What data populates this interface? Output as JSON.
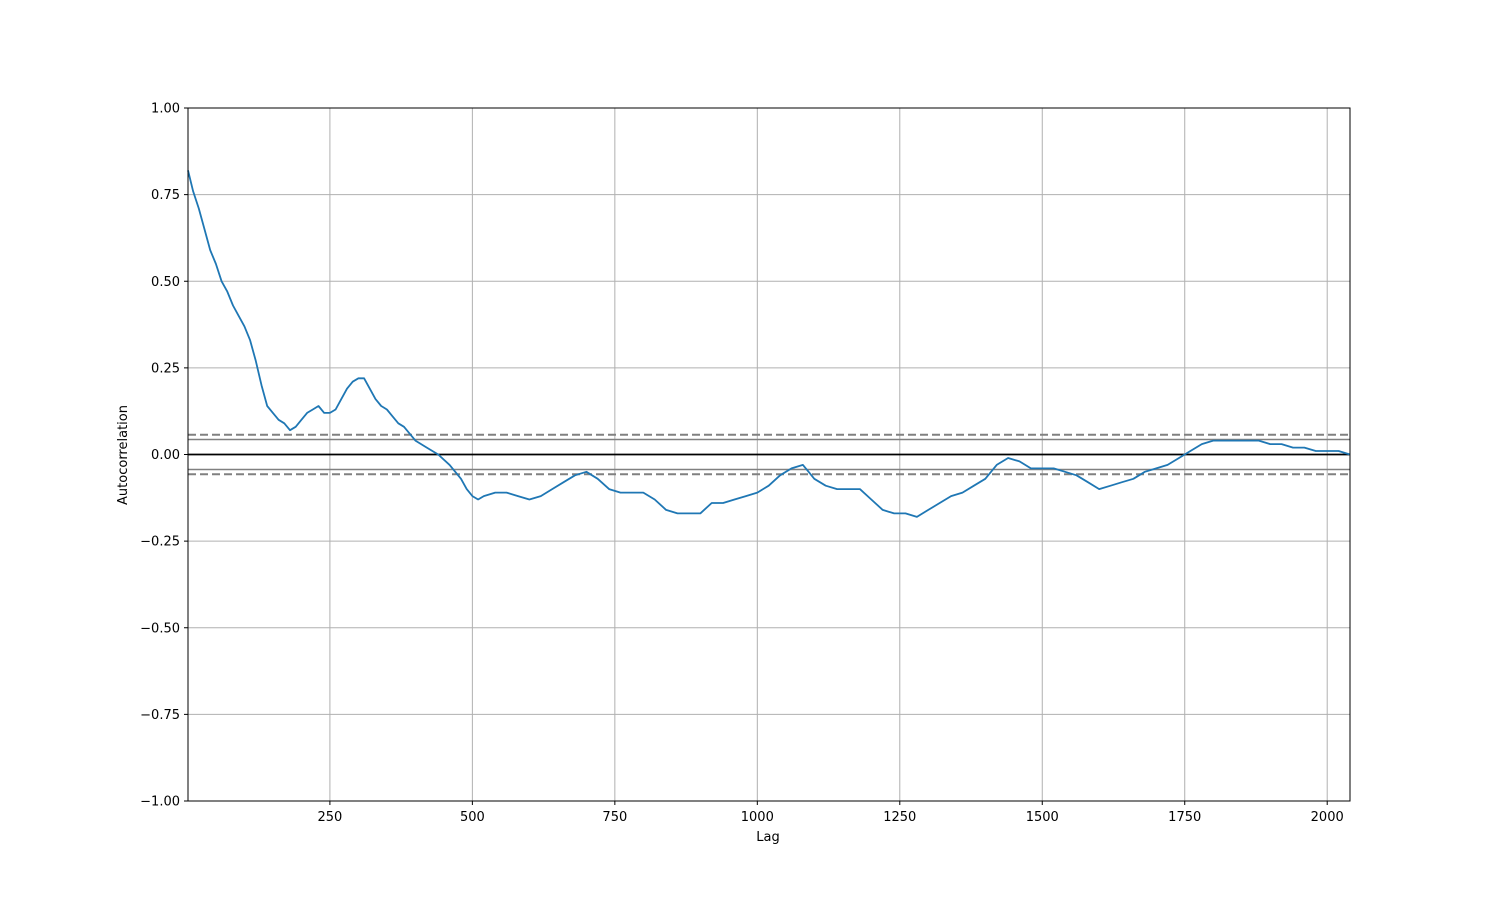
{
  "chart_data": {
    "type": "line",
    "title": "",
    "xlabel": "Lag",
    "ylabel": "Autocorrelation",
    "xlim": [
      1,
      2040
    ],
    "ylim": [
      -1.0,
      1.0
    ],
    "x_ticks": [
      250,
      500,
      750,
      1000,
      1250,
      1500,
      1750,
      2000
    ],
    "x_tick_labels": [
      "250",
      "500",
      "750",
      "1000",
      "1250",
      "1500",
      "1750",
      "2000"
    ],
    "y_ticks": [
      -1.0,
      -0.75,
      -0.5,
      -0.25,
      0.0,
      0.25,
      0.5,
      0.75,
      1.0
    ],
    "y_tick_labels": [
      "−1.00",
      "−0.75",
      "−0.50",
      "−0.25",
      "0.00",
      "0.25",
      "0.50",
      "0.75",
      "1.00"
    ],
    "grid": true,
    "reference_lines": {
      "zero": 0.0,
      "solid_confidence": [
        0.0434,
        -0.0434
      ],
      "dashed_confidence": [
        0.0571,
        -0.0571
      ]
    },
    "series": [
      {
        "color": "#1f77b4",
        "x": [
          1,
          10,
          20,
          30,
          40,
          50,
          60,
          70,
          80,
          90,
          100,
          110,
          120,
          130,
          140,
          150,
          160,
          170,
          180,
          190,
          200,
          210,
          220,
          230,
          240,
          250,
          260,
          270,
          280,
          290,
          300,
          310,
          320,
          330,
          340,
          350,
          360,
          370,
          380,
          390,
          400,
          420,
          440,
          460,
          480,
          490,
          500,
          510,
          520,
          540,
          560,
          580,
          600,
          620,
          640,
          660,
          680,
          700,
          720,
          740,
          760,
          780,
          800,
          820,
          840,
          860,
          880,
          900,
          920,
          940,
          960,
          980,
          1000,
          1020,
          1040,
          1060,
          1080,
          1090,
          1100,
          1120,
          1140,
          1160,
          1180,
          1200,
          1220,
          1240,
          1260,
          1280,
          1300,
          1320,
          1340,
          1360,
          1380,
          1400,
          1420,
          1440,
          1460,
          1480,
          1500,
          1520,
          1540,
          1560,
          1580,
          1600,
          1620,
          1640,
          1660,
          1680,
          1700,
          1720,
          1740,
          1760,
          1780,
          1800,
          1820,
          1840,
          1860,
          1880,
          1900,
          1920,
          1940,
          1960,
          1980,
          2000,
          2020,
          2040
        ],
        "y": [
          0.82,
          0.76,
          0.71,
          0.65,
          0.59,
          0.55,
          0.5,
          0.47,
          0.43,
          0.4,
          0.37,
          0.33,
          0.27,
          0.2,
          0.14,
          0.12,
          0.1,
          0.09,
          0.07,
          0.08,
          0.1,
          0.12,
          0.13,
          0.14,
          0.12,
          0.12,
          0.13,
          0.16,
          0.19,
          0.21,
          0.22,
          0.22,
          0.19,
          0.16,
          0.14,
          0.13,
          0.11,
          0.09,
          0.08,
          0.06,
          0.04,
          0.02,
          0.0,
          -0.03,
          -0.07,
          -0.1,
          -0.12,
          -0.13,
          -0.12,
          -0.11,
          -0.11,
          -0.12,
          -0.13,
          -0.12,
          -0.1,
          -0.08,
          -0.06,
          -0.05,
          -0.07,
          -0.1,
          -0.11,
          -0.11,
          -0.11,
          -0.13,
          -0.16,
          -0.17,
          -0.17,
          -0.17,
          -0.14,
          -0.14,
          -0.13,
          -0.12,
          -0.11,
          -0.09,
          -0.06,
          -0.04,
          -0.03,
          -0.05,
          -0.07,
          -0.09,
          -0.1,
          -0.1,
          -0.1,
          -0.13,
          -0.16,
          -0.17,
          -0.17,
          -0.18,
          -0.16,
          -0.14,
          -0.12,
          -0.11,
          -0.09,
          -0.07,
          -0.03,
          -0.01,
          -0.02,
          -0.04,
          -0.04,
          -0.04,
          -0.05,
          -0.06,
          -0.08,
          -0.1,
          -0.09,
          -0.08,
          -0.07,
          -0.05,
          -0.04,
          -0.03,
          -0.01,
          0.01,
          0.03,
          0.04,
          0.04,
          0.04,
          0.04,
          0.04,
          0.03,
          0.03,
          0.02,
          0.02,
          0.01,
          0.01,
          0.01,
          0.0
        ]
      }
    ]
  }
}
